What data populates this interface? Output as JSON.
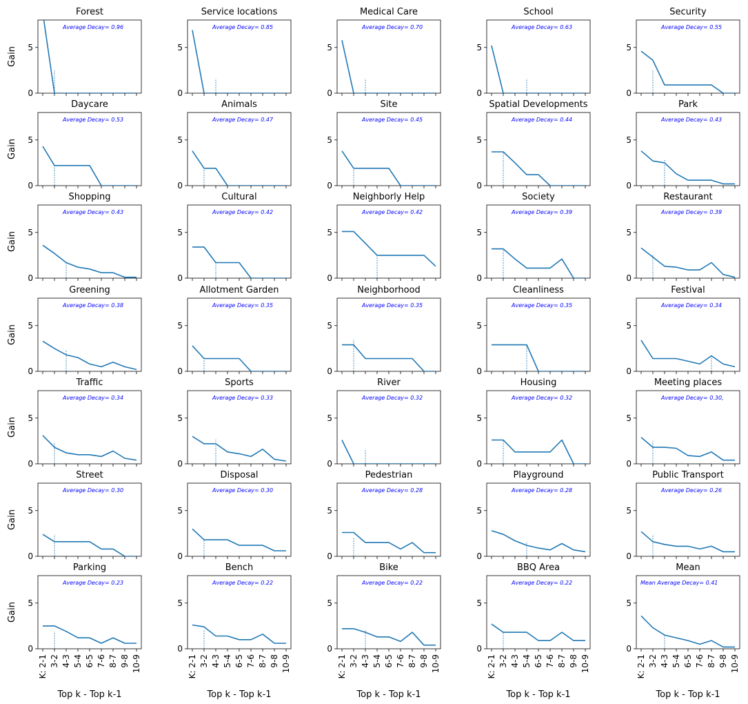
{
  "figure": {
    "y_label": "Gain",
    "x_label": "Top k - Top k-1",
    "x_ticks": [
      "K: 2-1",
      "3-2",
      "4-3",
      "5-4",
      "6-5",
      "7-6",
      "8-7",
      "9-8",
      "10-9"
    ],
    "y_ticks": [
      "0",
      "5"
    ],
    "line_color": "#1f77b4",
    "annotation_color": "#0000ff"
  },
  "chart_data": [
    {
      "type": "line",
      "title": "Forest",
      "annotation": "Average Decay= 0.96",
      "ylim": [
        0,
        8
      ],
      "values": [
        8.8,
        0,
        0,
        0,
        0,
        0,
        0,
        0,
        0
      ],
      "marker_index": 1,
      "marker_height": 2.5
    },
    {
      "type": "line",
      "title": "Service locations",
      "annotation": "Average Decay= 0.85",
      "ylim": [
        0,
        8
      ],
      "values": [
        6.9,
        0,
        0,
        0,
        0,
        0,
        0,
        0,
        0
      ],
      "marker_index": 2,
      "marker_height": 1.6
    },
    {
      "type": "line",
      "title": "Medical Care",
      "annotation": "Average Decay= 0.70",
      "ylim": [
        0,
        8
      ],
      "values": [
        5.8,
        0,
        0,
        0,
        0,
        0,
        0,
        0,
        0
      ],
      "marker_index": 2,
      "marker_height": 1.6
    },
    {
      "type": "line",
      "title": "School",
      "annotation": "Average Decay= 0.63",
      "ylim": [
        0,
        8
      ],
      "values": [
        5.2,
        0,
        0,
        0,
        0,
        0,
        0,
        0,
        0
      ],
      "marker_index": 3,
      "marker_height": 1.6
    },
    {
      "type": "line",
      "title": "Security",
      "annotation": "Average Decay= 0.55",
      "ylim": [
        0,
        8
      ],
      "values": [
        4.6,
        3.6,
        0.9,
        0.9,
        0.9,
        0.9,
        0.9,
        0,
        0
      ],
      "marker_index": 1,
      "marker_height": 2.5
    },
    {
      "type": "line",
      "title": "Daycare",
      "annotation": "Average Decay= 0.53",
      "ylim": [
        0,
        8
      ],
      "values": [
        4.3,
        2.2,
        2.2,
        2.2,
        2.2,
        0,
        0,
        0,
        0
      ],
      "marker_index": 1,
      "marker_height": 2.2
    },
    {
      "type": "line",
      "title": "Animals",
      "annotation": "Average Decay= 0.47",
      "ylim": [
        0,
        8
      ],
      "values": [
        3.8,
        1.9,
        1.9,
        0,
        0,
        0,
        0,
        0,
        0
      ],
      "marker_index": 1,
      "marker_height": 1.9
    },
    {
      "type": "line",
      "title": "Site",
      "annotation": "Average Decay= 0.45",
      "ylim": [
        0,
        8
      ],
      "values": [
        3.8,
        1.9,
        1.9,
        1.9,
        1.9,
        0,
        0,
        0,
        0
      ],
      "marker_index": 1,
      "marker_height": 1.9
    },
    {
      "type": "line",
      "title": "Spatial Developments",
      "annotation": "Average Decay= 0.44",
      "ylim": [
        0,
        8
      ],
      "values": [
        3.7,
        3.7,
        2.5,
        1.2,
        1.2,
        0,
        0,
        0,
        0
      ],
      "marker_index": 1,
      "marker_height": 3.7
    },
    {
      "type": "line",
      "title": "Park",
      "annotation": "Average Decay= 0.43",
      "ylim": [
        0,
        8
      ],
      "values": [
        3.8,
        2.7,
        2.5,
        1.3,
        0.6,
        0.6,
        0.6,
        0.2,
        0.2
      ],
      "marker_index": 2,
      "marker_height": 2.9
    },
    {
      "type": "line",
      "title": "Shopping",
      "annotation": "Average Decay= 0.43",
      "ylim": [
        0,
        8
      ],
      "values": [
        3.6,
        2.7,
        1.7,
        1.2,
        1.0,
        0.6,
        0.6,
        0.1,
        0.1
      ],
      "marker_index": 2,
      "marker_height": 1.7
    },
    {
      "type": "line",
      "title": "Cultural",
      "annotation": "Average Decay= 0.42",
      "ylim": [
        0,
        8
      ],
      "values": [
        3.4,
        3.4,
        1.7,
        1.7,
        1.7,
        0,
        0,
        0,
        0
      ],
      "marker_index": 2,
      "marker_height": 1.7
    },
    {
      "type": "line",
      "title": "Neighborly Help",
      "annotation": "Average Decay= 0.42",
      "ylim": [
        0,
        8
      ],
      "values": [
        5.1,
        5.1,
        3.8,
        2.5,
        2.5,
        2.5,
        2.5,
        2.5,
        1.3
      ],
      "marker_index": 3,
      "marker_height": 2.5
    },
    {
      "type": "line",
      "title": "Society",
      "annotation": "Average Decay= 0.39",
      "ylim": [
        0,
        8
      ],
      "values": [
        3.2,
        3.2,
        2.1,
        1.1,
        1.1,
        1.1,
        2.1,
        0,
        0
      ],
      "marker_index": 1,
      "marker_height": 3.2
    },
    {
      "type": "line",
      "title": "Restaurant",
      "annotation": "Average Decay= 0.39",
      "ylim": [
        0,
        8
      ],
      "values": [
        3.3,
        2.3,
        1.3,
        1.2,
        0.9,
        0.9,
        1.7,
        0.4,
        0.1
      ],
      "marker_index": 1,
      "marker_height": 2.5
    },
    {
      "type": "line",
      "title": "Greening",
      "annotation": "Average Decay= 0.38",
      "ylim": [
        0,
        8
      ],
      "values": [
        3.3,
        2.5,
        1.8,
        1.5,
        0.8,
        0.5,
        1.0,
        0.5,
        0.2
      ],
      "marker_index": 2,
      "marker_height": 2.4
    },
    {
      "type": "line",
      "title": "Allotment Garden",
      "annotation": "Average Decay= 0.35",
      "ylim": [
        0,
        8
      ],
      "values": [
        2.8,
        1.4,
        1.4,
        1.4,
        1.4,
        0,
        0,
        0,
        0
      ],
      "marker_index": 1,
      "marker_height": 1.4
    },
    {
      "type": "line",
      "title": "Neighborhood",
      "annotation": "Average Decay= 0.35",
      "ylim": [
        0,
        8
      ],
      "values": [
        2.9,
        2.9,
        1.4,
        1.4,
        1.4,
        1.4,
        1.4,
        0,
        0
      ],
      "marker_index": 1,
      "marker_height": 3.5
    },
    {
      "type": "line",
      "title": "Cleanliness",
      "annotation": "Average Decay= 0.35",
      "ylim": [
        0,
        8
      ],
      "values": [
        2.9,
        2.9,
        2.9,
        2.9,
        0,
        0,
        0,
        0,
        0
      ],
      "marker_index": 3,
      "marker_height": 2.9
    },
    {
      "type": "line",
      "title": "Festival",
      "annotation": "Average Decay= 0.34",
      "ylim": [
        0,
        8
      ],
      "values": [
        3.4,
        1.4,
        1.4,
        1.4,
        1.1,
        0.8,
        1.7,
        0.8,
        0.5
      ],
      "marker_index": 6,
      "marker_height": 1.7
    },
    {
      "type": "line",
      "title": "Traffic",
      "annotation": "Average Decay= 0.34",
      "ylim": [
        0,
        8
      ],
      "values": [
        3.1,
        1.8,
        1.2,
        1.0,
        1.0,
        0.8,
        1.4,
        0.6,
        0.4
      ],
      "marker_index": 1,
      "marker_height": 2.4
    },
    {
      "type": "line",
      "title": "Sports",
      "annotation": "Average Decay= 0.33",
      "ylim": [
        0,
        8
      ],
      "values": [
        3.0,
        2.2,
        2.2,
        1.3,
        1.1,
        0.8,
        1.6,
        0.5,
        0.3
      ],
      "marker_index": 2,
      "marker_height": 2.7
    },
    {
      "type": "line",
      "title": "River",
      "annotation": "Average Decay= 0.32",
      "ylim": [
        0,
        8
      ],
      "values": [
        2.6,
        0,
        0,
        0,
        0,
        0,
        0,
        0,
        0
      ],
      "marker_index": 2,
      "marker_height": 1.6
    },
    {
      "type": "line",
      "title": "Housing",
      "annotation": "Average Decay= 0.32",
      "ylim": [
        0,
        8
      ],
      "values": [
        2.6,
        2.6,
        1.3,
        1.3,
        1.3,
        1.3,
        2.6,
        0,
        0
      ],
      "marker_index": 1,
      "marker_height": 2.6
    },
    {
      "type": "line",
      "title": "Meeting places",
      "annotation": "Average Decay= 0.30,",
      "ylim": [
        0,
        8
      ],
      "values": [
        2.9,
        1.8,
        1.8,
        1.7,
        0.9,
        0.8,
        1.3,
        0.4,
        0.4
      ],
      "marker_index": 1,
      "marker_height": 2.5
    },
    {
      "type": "line",
      "title": "Street",
      "annotation": "Average Decay= 0.30",
      "ylim": [
        0,
        8
      ],
      "values": [
        2.4,
        1.6,
        1.6,
        1.6,
        1.6,
        0.8,
        0.8,
        0,
        0
      ],
      "marker_index": 1,
      "marker_height": 2.4
    },
    {
      "type": "line",
      "title": "Disposal",
      "annotation": "Average Decay= 0.30",
      "ylim": [
        0,
        8
      ],
      "values": [
        3.0,
        1.8,
        1.8,
        1.8,
        1.2,
        1.2,
        1.2,
        0.6,
        0.6
      ],
      "marker_index": 1,
      "marker_height": 1.8
    },
    {
      "type": "line",
      "title": "Pedestrian",
      "annotation": "Average Decay= 0.28",
      "ylim": [
        0,
        8
      ],
      "values": [
        2.6,
        2.6,
        1.5,
        1.5,
        1.5,
        0.8,
        1.5,
        0.4,
        0.4
      ],
      "marker_index": 1,
      "marker_height": 2.0
    },
    {
      "type": "line",
      "title": "Playground",
      "annotation": "Average Decay= 0.28",
      "ylim": [
        0,
        8
      ],
      "values": [
        2.8,
        2.4,
        1.7,
        1.2,
        0.9,
        0.7,
        1.4,
        0.7,
        0.5
      ],
      "marker_index": 3,
      "marker_height": 1.6
    },
    {
      "type": "line",
      "title": "Public Transport",
      "annotation": "Average Decay= 0.26",
      "ylim": [
        0,
        8
      ],
      "values": [
        2.7,
        1.6,
        1.3,
        1.1,
        1.1,
        0.8,
        1.1,
        0.5,
        0.5
      ],
      "marker_index": 1,
      "marker_height": 2.4
    },
    {
      "type": "line",
      "title": "Parking",
      "annotation": "Average Decay= 0.23",
      "ylim": [
        0,
        8
      ],
      "values": [
        2.5,
        2.5,
        1.9,
        1.2,
        1.2,
        0.6,
        1.2,
        0.6,
        0.6
      ],
      "marker_index": 1,
      "marker_height": 1.9
    },
    {
      "type": "line",
      "title": "Bench",
      "annotation": "Average Decay= 0.22",
      "ylim": [
        0,
        8
      ],
      "values": [
        2.6,
        2.4,
        1.4,
        1.4,
        1.0,
        1.0,
        1.6,
        0.6,
        0.6
      ],
      "marker_index": 1,
      "marker_height": 2.1
    },
    {
      "type": "line",
      "title": "Bike",
      "annotation": "Average Decay= 0.22",
      "ylim": [
        0,
        8
      ],
      "values": [
        2.2,
        2.2,
        1.8,
        1.3,
        1.3,
        0.8,
        1.8,
        0.4,
        0.4
      ],
      "marker_index": 2,
      "marker_height": 2.0
    },
    {
      "type": "line",
      "title": "BBQ Area",
      "annotation": "Average Decay= 0.22",
      "ylim": [
        0,
        8
      ],
      "values": [
        2.7,
        1.8,
        1.8,
        1.8,
        0.9,
        0.9,
        1.8,
        0.9,
        0.9
      ],
      "marker_index": 1,
      "marker_height": 1.8
    },
    {
      "type": "line",
      "title": "Mean",
      "annotation": "Mean Average Decay= 0.41",
      "ylim": [
        0,
        8
      ],
      "values": [
        3.6,
        2.3,
        1.5,
        1.2,
        0.9,
        0.5,
        0.9,
        0.2,
        0.2
      ],
      "marker_index": 2,
      "marker_height": 1.5
    }
  ]
}
